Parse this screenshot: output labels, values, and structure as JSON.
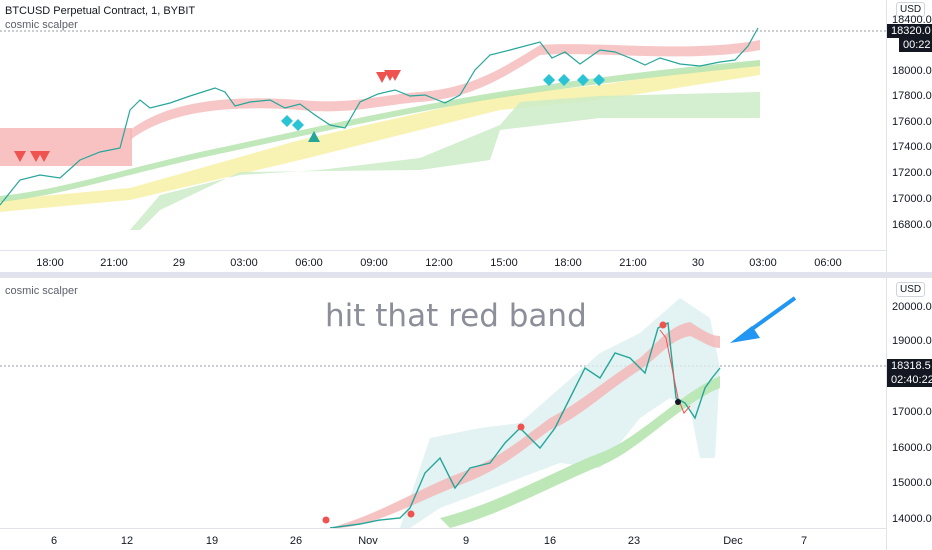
{
  "top_pane": {
    "title": "BTCUSD Perpetual Contract, 1, BYBIT",
    "indicator": "cosmic scalper",
    "currency": "USD",
    "price_labels": [
      "18400.0",
      "18200.0",
      "18000.0",
      "17800.0",
      "17600.0",
      "17400.0",
      "17200.0",
      "17000.0",
      "16800.0"
    ],
    "last_price": "18320.0",
    "countdown": "00:22",
    "time_labels": [
      "18:00",
      "21:00",
      "29",
      "03:00",
      "06:00",
      "09:00",
      "12:00",
      "15:00",
      "18:00",
      "21:00",
      "30",
      "03:00",
      "06:00"
    ]
  },
  "bottom_pane": {
    "indicator": "cosmic scalper",
    "currency": "USD",
    "annotation": "hit that red band",
    "price_labels": [
      "20000.0",
      "19000.0",
      "17000.0",
      "16000.0",
      "15000.0",
      "14000.0"
    ],
    "last_price": "18318.5",
    "countdown": "02:40:22",
    "time_labels": [
      "6",
      "12",
      "19",
      "26",
      "Nov",
      "9",
      "16",
      "23",
      "Dec",
      "7"
    ]
  },
  "colors": {
    "up": "#26a69a",
    "down": "#ef5350",
    "red_band": "#f4b4b4",
    "green_band": "#b9e6b3",
    "yellow_band": "#f7ef9a",
    "cyan_marker": "#2bc4d4",
    "arrow": "#2196f3"
  },
  "icons": {
    "sell_signal": "red-down-triangle",
    "buy_signal": "teal-up-triangle",
    "diamond_signal": "cyan-diamond",
    "pointer": "blue-arrow"
  }
}
